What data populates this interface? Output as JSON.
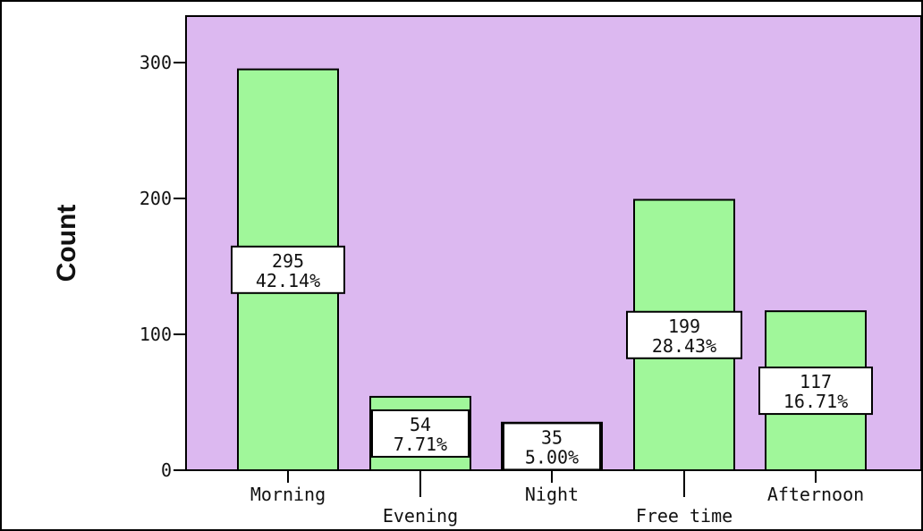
{
  "chart_data": {
    "type": "bar",
    "title": "",
    "xlabel": "",
    "ylabel": "Count",
    "ylim": [
      0,
      330
    ],
    "yticks": [
      0,
      100,
      200,
      300
    ],
    "grid": false,
    "categories": [
      "Morning",
      "Evening",
      "Night",
      "Free time",
      "Afternoon"
    ],
    "values": [
      295,
      54,
      35,
      199,
      117
    ],
    "percent_labels": [
      "42.14%",
      "7.71%",
      "5.00%",
      "28.43%",
      "16.71%"
    ],
    "colors": {
      "plot_background": "#dcb8f0",
      "bar_fill": "#a0f79a",
      "bar_stroke": "#000000",
      "label_box_fill": "#ffffff"
    }
  }
}
